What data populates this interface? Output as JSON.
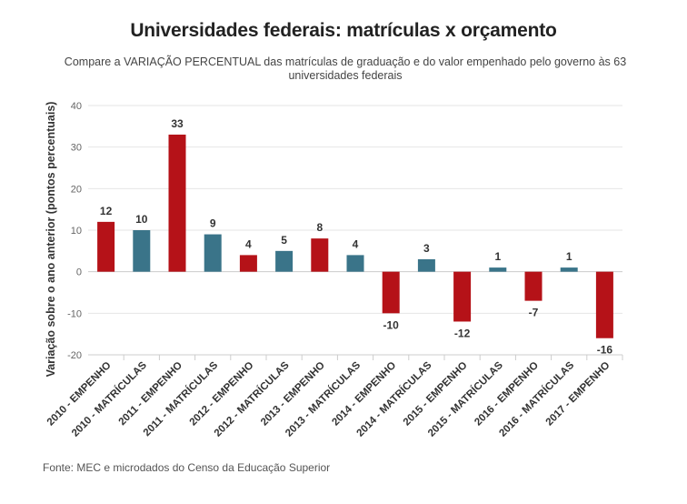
{
  "header": {
    "title": "Universidades federais: matrículas x orçamento",
    "subtitle": "Compare a VARIAÇÃO PERCENTUAL das matrículas de graduação e do valor empenhado pelo governo às 63 universidades federais"
  },
  "footer": {
    "source": "Fonte: MEC e microdados do Censo da Educação Superior"
  },
  "chart_data": {
    "type": "bar",
    "title": "Universidades federais: matrículas x orçamento",
    "xlabel": "",
    "ylabel": "Variação sobre o ano anterior (pontos percentuais)",
    "ylim": [
      -20,
      40
    ],
    "yticks": [
      -20,
      -10,
      0,
      10,
      20,
      30,
      40
    ],
    "grid": true,
    "categories": [
      "2010 - EMPENHO",
      "2010 - MATRÍCULAS",
      "2011 - EMPENHO",
      "2011 - MATRÍCULAS",
      "2012 - EMPENHO",
      "2012 - MATRÍCULAS",
      "2013 - EMPENHO",
      "2013 - MATRÍCULAS",
      "2014 - EMPENHO",
      "2014 - MATRÍCULAS",
      "2015 - EMPENHO",
      "2015 - MATRÍCULAS",
      "2016 - EMPENHO",
      "2016 - MATRÍCULAS",
      "2017 - EMPENHO"
    ],
    "values": [
      12,
      10,
      33,
      9,
      4,
      5,
      8,
      4,
      -10,
      3,
      -12,
      1,
      -7,
      1,
      -16
    ],
    "labels": [
      "12",
      "10",
      "33",
      "9",
      "4",
      "5",
      "8",
      "4",
      "-10",
      "3",
      "-12",
      "1",
      "-7",
      "1",
      "-16"
    ],
    "colors": {
      "empenho": "#b51218",
      "matriculas": "#3a7489",
      "grid": "#e6e6e6",
      "axis": "#cccccc"
    },
    "bar_colors": [
      "empenho",
      "matriculas",
      "empenho",
      "matriculas",
      "empenho",
      "matriculas",
      "empenho",
      "matriculas",
      "empenho",
      "matriculas",
      "empenho",
      "matriculas",
      "empenho",
      "matriculas",
      "empenho"
    ]
  }
}
